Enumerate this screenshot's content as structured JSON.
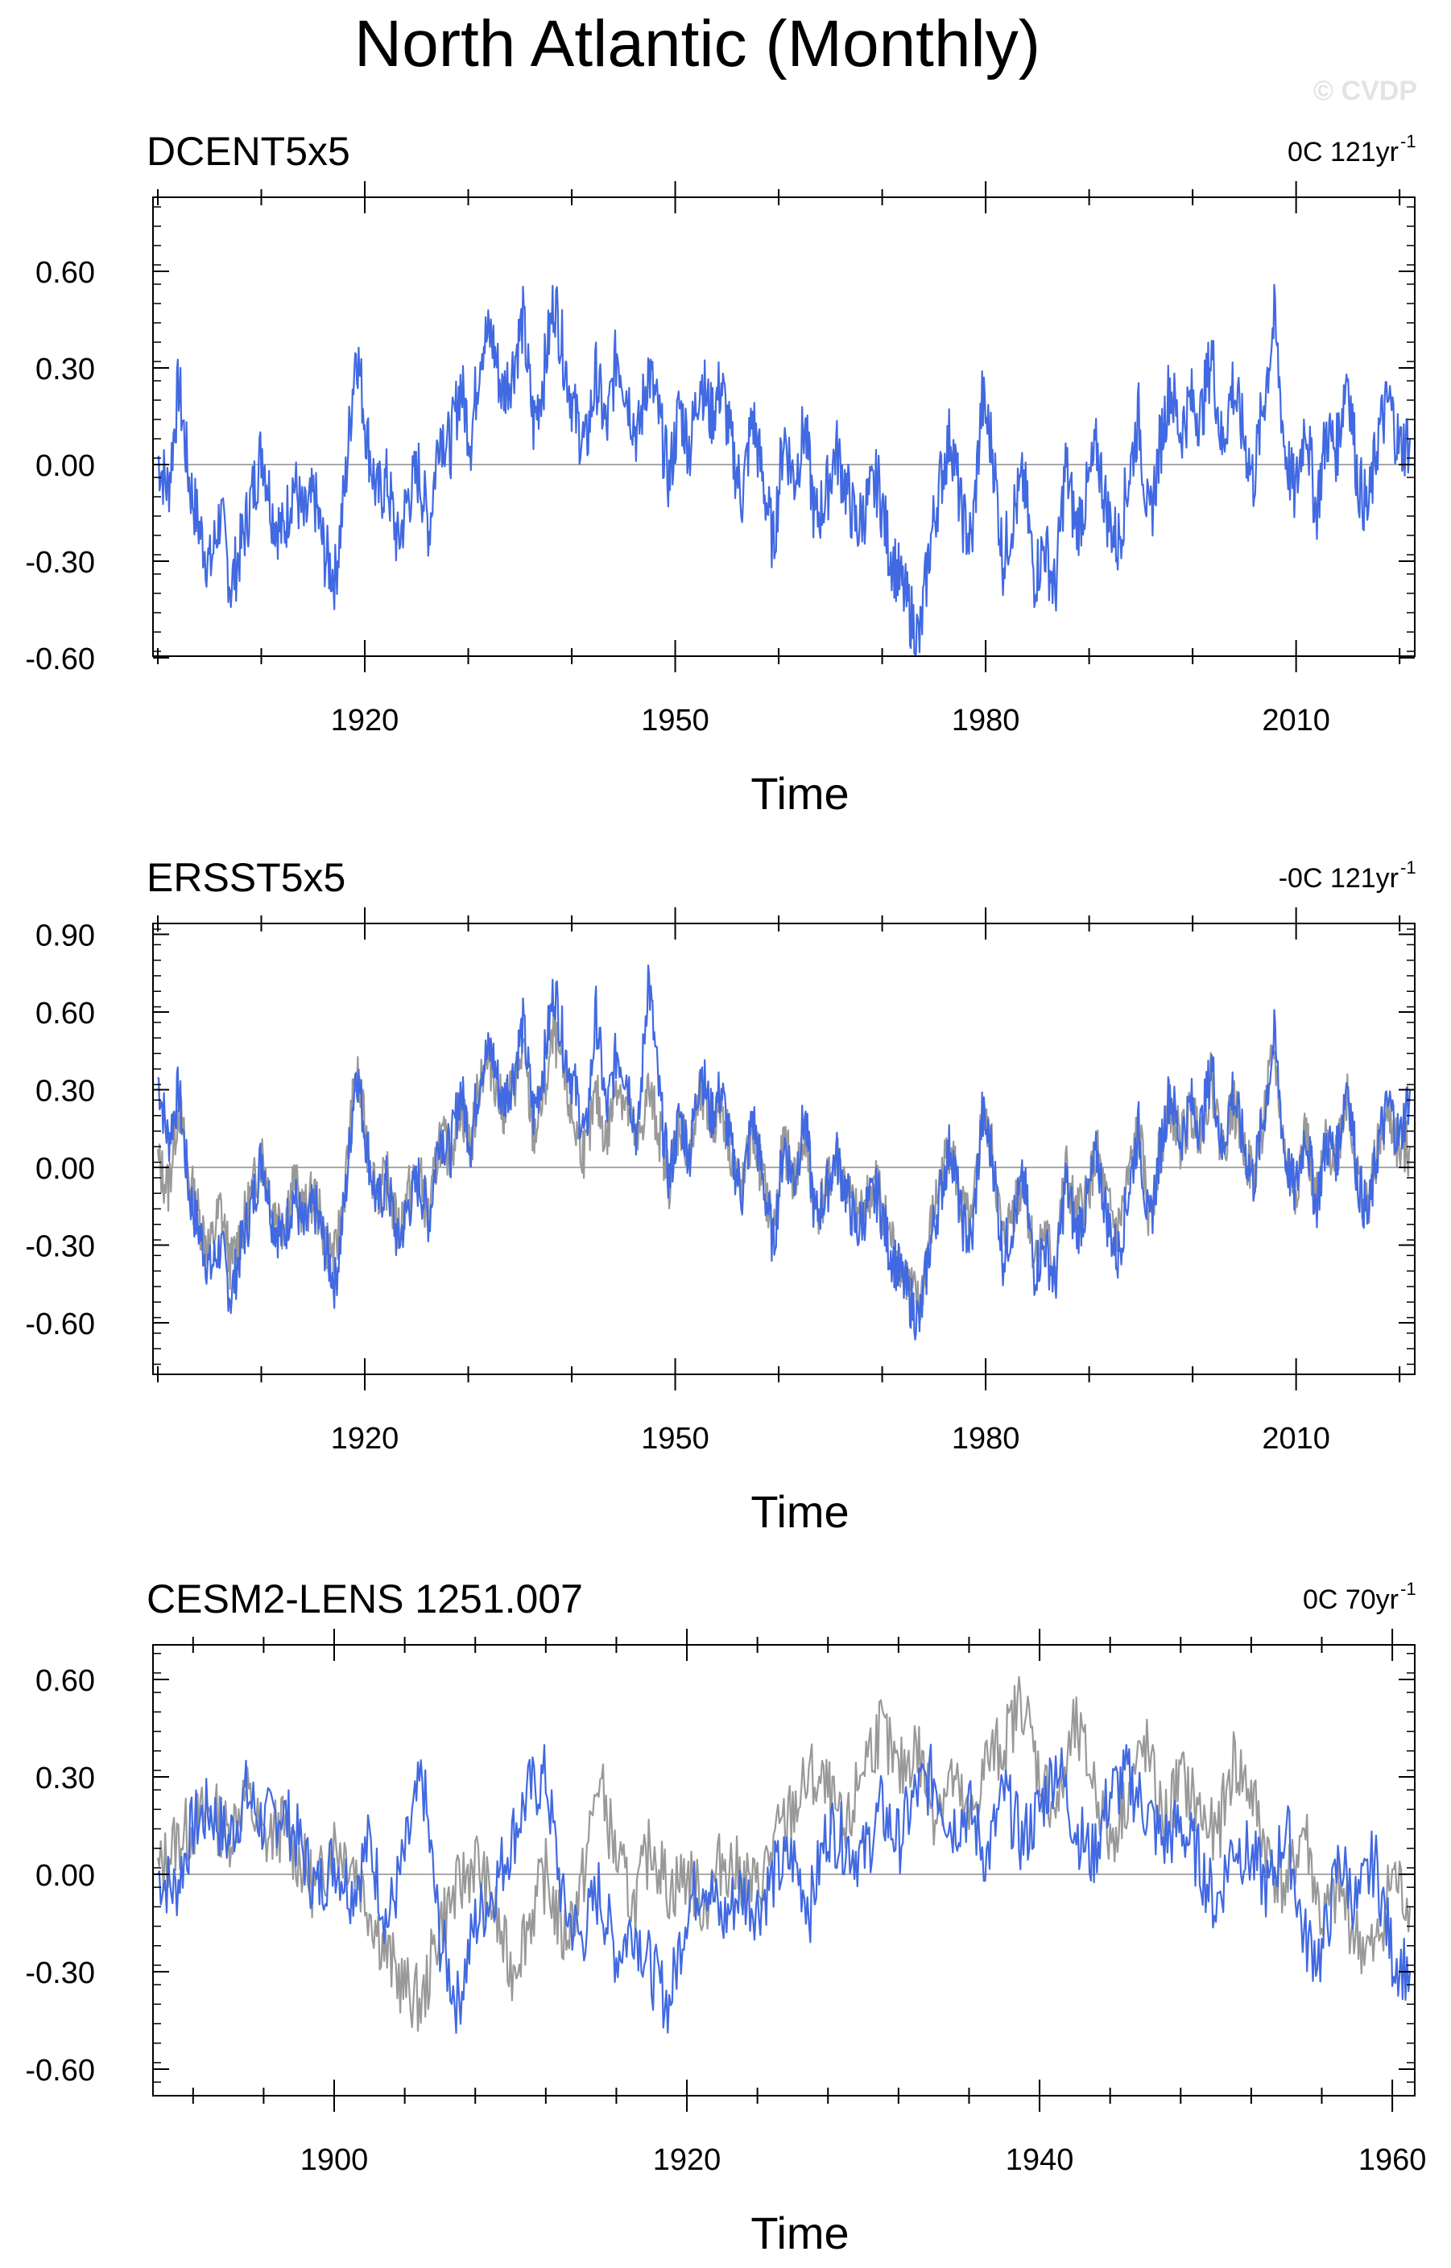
{
  "title": "North Atlantic (Monthly)",
  "watermark": "© CVDP",
  "colors": {
    "primary": "#4169e1",
    "secondary": "#999999",
    "zero_line": "#a9a9a9",
    "frame": "#000000"
  },
  "chart_data": [
    {
      "type": "line",
      "title": "DCENT5x5",
      "trend_label": "0C 121yr",
      "trend_exponent": "-1",
      "xlabel": "Time",
      "ylabel": "",
      "xlim": [
        1900,
        2021
      ],
      "ylim": [
        -0.6,
        0.8
      ],
      "yticks": [
        "0.60",
        "0.30",
        "0.00",
        "-0.30",
        "-0.60"
      ],
      "xticks": [
        "1920",
        "1950",
        "1980",
        "2010"
      ],
      "grid": false,
      "series": [
        {
          "style": "primary",
          "x_start": 1900,
          "x_end": 2021,
          "values": [
            0.02,
            -0.08,
            0.25,
            -0.05,
            -0.2,
            -0.32,
            -0.15,
            -0.38,
            -0.25,
            -0.1,
            0.05,
            -0.15,
            -0.22,
            -0.05,
            -0.18,
            -0.1,
            -0.28,
            -0.35,
            -0.05,
            0.38,
            0.1,
            -0.1,
            -0.05,
            -0.25,
            -0.1,
            -0.02,
            -0.2,
            0.12,
            0.05,
            0.25,
            0.08,
            0.38,
            0.4,
            0.22,
            0.3,
            0.45,
            0.12,
            0.28,
            0.52,
            0.32,
            0.15,
            0.05,
            0.28,
            0.1,
            0.35,
            0.22,
            0.08,
            0.3,
            0.15,
            -0.05,
            0.18,
            0.05,
            0.28,
            0.15,
            0.25,
            0.05,
            -0.1,
            0.15,
            -0.05,
            -0.25,
            0.1,
            -0.05,
            0.12,
            -0.18,
            -0.1,
            0.05,
            -0.08,
            -0.2,
            -0.12,
            -0.05,
            -0.25,
            -0.35,
            -0.45,
            -0.55,
            -0.25,
            -0.05,
            0.1,
            -0.15,
            -0.25,
            0.2,
            0.05,
            -0.3,
            -0.15,
            -0.05,
            -0.35,
            -0.25,
            -0.4,
            0.0,
            -0.2,
            -0.1,
            0.05,
            -0.15,
            -0.25,
            -0.05,
            0.15,
            -0.2,
            0.05,
            0.25,
            0.1,
            0.2,
            0.15,
            0.35,
            0.05,
            0.25,
            0.1,
            -0.05,
            0.2,
            0.45,
            0.05,
            -0.1,
            0.15,
            -0.15,
            0.1,
            0.05,
            0.3,
            -0.05,
            -0.15,
            0.1,
            0.2,
            0.05,
            0.08
          ]
        },
        {
          "style": "secondary",
          "x_start": 1900,
          "x_end": 2021,
          "values": []
        }
      ]
    },
    {
      "type": "line",
      "title": "ERSST5x5",
      "trend_label": "-0C 121yr",
      "trend_exponent": "-1",
      "xlabel": "Time",
      "ylabel": "",
      "xlim": [
        1900,
        2021
      ],
      "ylim": [
        -0.85,
        0.9
      ],
      "yticks": [
        "0.90",
        "0.60",
        "0.30",
        "0.00",
        "-0.30",
        "-0.60"
      ],
      "xticks": [
        "1920",
        "1950",
        "1980",
        "2010"
      ],
      "grid": false,
      "series": [
        {
          "style": "secondary",
          "x_start": 1900,
          "x_end": 2021,
          "values": [
            0.02,
            -0.08,
            0.25,
            -0.05,
            -0.2,
            -0.32,
            -0.15,
            -0.38,
            -0.25,
            -0.1,
            0.05,
            -0.15,
            -0.22,
            -0.05,
            -0.18,
            -0.1,
            -0.28,
            -0.35,
            -0.05,
            0.38,
            0.1,
            -0.1,
            -0.05,
            -0.25,
            -0.1,
            -0.02,
            -0.2,
            0.12,
            0.05,
            0.25,
            0.08,
            0.38,
            0.4,
            0.22,
            0.3,
            0.45,
            0.12,
            0.28,
            0.52,
            0.32,
            0.15,
            0.05,
            0.28,
            0.1,
            0.35,
            0.22,
            0.08,
            0.3,
            0.15,
            -0.05,
            0.18,
            0.05,
            0.28,
            0.15,
            0.25,
            0.05,
            -0.1,
            0.15,
            -0.05,
            -0.25,
            0.1,
            -0.05,
            0.12,
            -0.18,
            -0.1,
            0.05,
            -0.08,
            -0.2,
            -0.12,
            -0.05,
            -0.25,
            -0.35,
            -0.45,
            -0.55,
            -0.25,
            -0.05,
            0.1,
            -0.15,
            -0.25,
            0.2,
            0.05,
            -0.3,
            -0.15,
            -0.05,
            -0.35,
            -0.25,
            -0.4,
            0.0,
            -0.2,
            -0.1,
            0.05,
            -0.15,
            -0.25,
            -0.05,
            0.15,
            -0.2,
            0.05,
            0.25,
            0.1,
            0.2,
            0.15,
            0.35,
            0.05,
            0.25,
            0.1,
            -0.05,
            0.2,
            0.45,
            0.05,
            -0.1,
            0.15,
            -0.15,
            0.1,
            0.05,
            0.3,
            -0.05,
            -0.15,
            0.1,
            0.2,
            0.05,
            0.08
          ]
        },
        {
          "style": "primary",
          "x_start": 1900,
          "x_end": 2021,
          "values": [
            0.35,
            0.1,
            0.3,
            -0.1,
            -0.25,
            -0.4,
            -0.3,
            -0.5,
            -0.3,
            -0.15,
            0.05,
            -0.2,
            -0.28,
            -0.1,
            -0.25,
            -0.15,
            -0.3,
            -0.45,
            -0.1,
            0.4,
            0.1,
            -0.15,
            -0.05,
            -0.3,
            -0.15,
            -0.05,
            -0.2,
            0.15,
            0.05,
            0.3,
            0.1,
            0.4,
            0.45,
            0.25,
            0.35,
            0.55,
            0.2,
            0.4,
            0.7,
            0.45,
            0.3,
            0.1,
            0.6,
            0.2,
            0.45,
            0.35,
            0.1,
            0.75,
            0.3,
            -0.05,
            0.2,
            0.05,
            0.4,
            0.2,
            0.3,
            0.05,
            -0.1,
            0.2,
            -0.05,
            -0.3,
            0.1,
            -0.05,
            0.2,
            -0.2,
            -0.1,
            0.05,
            -0.1,
            -0.25,
            -0.15,
            -0.1,
            -0.3,
            -0.4,
            -0.5,
            -0.6,
            -0.3,
            -0.1,
            0.1,
            -0.2,
            -0.3,
            0.2,
            0.05,
            -0.35,
            -0.2,
            -0.05,
            -0.4,
            -0.3,
            -0.45,
            -0.05,
            -0.25,
            -0.15,
            0.05,
            -0.2,
            -0.35,
            -0.1,
            0.15,
            -0.25,
            0.05,
            0.3,
            0.1,
            0.25,
            0.15,
            0.4,
            0.05,
            0.3,
            0.1,
            -0.05,
            0.2,
            0.5,
            0.05,
            -0.1,
            0.15,
            -0.15,
            0.1,
            0.05,
            0.35,
            -0.05,
            -0.2,
            0.1,
            0.25,
            0.1,
            0.3
          ]
        }
      ]
    },
    {
      "type": "line",
      "title": "CESM2-LENS 1251.007",
      "trend_label": "0C 70yr",
      "trend_exponent": "-1",
      "xlabel": "Time",
      "ylabel": "",
      "xlim": [
        1890,
        1961
      ],
      "ylim": [
        -0.7,
        0.7
      ],
      "yticks": [
        "0.60",
        "0.30",
        "0.00",
        "-0.30",
        "-0.60"
      ],
      "xticks": [
        "1900",
        "1920",
        "1940",
        "1960"
      ],
      "grid": false,
      "series": [
        {
          "style": "secondary",
          "x_start": 1890,
          "x_end": 1961,
          "values": [
            0.0,
            0.1,
            0.15,
            0.2,
            0.12,
            0.25,
            0.1,
            0.15,
            0.05,
            -0.05,
            0.1,
            0.05,
            -0.1,
            -0.25,
            -0.35,
            -0.4,
            -0.15,
            -0.05,
            0.05,
            -0.1,
            -0.3,
            -0.15,
            0.0,
            -0.2,
            -0.05,
            0.3,
            0.05,
            -0.1,
            0.1,
            -0.05,
            0.0,
            -0.1,
            0.05,
            0.0,
            -0.05,
            0.1,
            0.2,
            0.3,
            0.25,
            0.1,
            0.35,
            0.45,
            0.3,
            0.4,
            0.2,
            0.3,
            0.15,
            0.35,
            0.4,
            0.55,
            0.3,
            0.2,
            0.45,
            0.3,
            0.1,
            0.25,
            0.4,
            0.15,
            0.3,
            0.2,
            0.1,
            0.35,
            0.25,
            0.05,
            -0.05,
            0.15,
            -0.15,
            -0.05,
            -0.2,
            -0.25,
            0.0,
            -0.1
          ]
        },
        {
          "style": "primary",
          "x_start": 1890,
          "x_end": 1961,
          "values": [
            0.0,
            -0.05,
            0.15,
            0.2,
            0.1,
            0.25,
            0.15,
            0.2,
            0.1,
            -0.05,
            0.05,
            -0.05,
            0.1,
            -0.15,
            0.05,
            0.3,
            -0.2,
            -0.4,
            -0.15,
            -0.05,
            0.1,
            0.25,
            0.3,
            -0.1,
            -0.2,
            -0.05,
            -0.25,
            -0.15,
            -0.3,
            -0.4,
            -0.1,
            0.0,
            -0.15,
            -0.05,
            -0.1,
            0.0,
            0.05,
            -0.1,
            0.15,
            0.1,
            0.05,
            0.2,
            0.1,
            0.25,
            0.3,
            0.15,
            0.2,
            0.05,
            0.25,
            0.1,
            0.2,
            0.35,
            0.15,
            0.05,
            0.25,
            0.3,
            0.2,
            0.1,
            0.15,
            0.05,
            -0.1,
            0.1,
            0.05,
            -0.05,
            0.15,
            -0.2,
            -0.25,
            0.05,
            -0.1,
            0.05,
            -0.25,
            -0.3
          ]
        }
      ]
    }
  ]
}
